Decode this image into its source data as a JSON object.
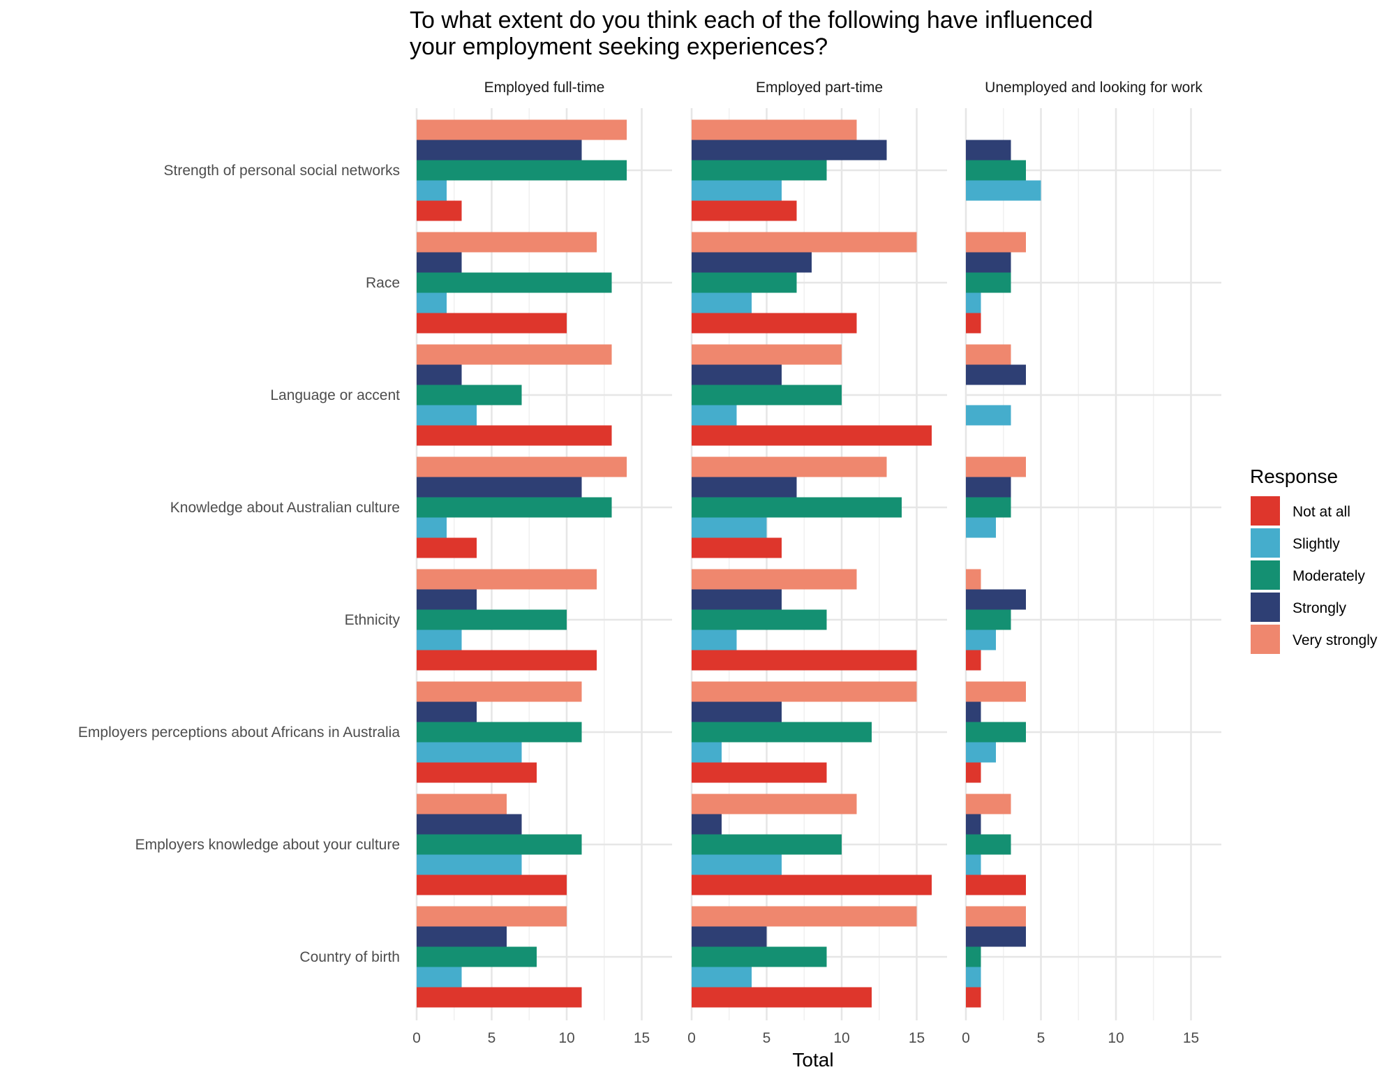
{
  "chart_data": {
    "type": "bar",
    "orientation": "horizontal",
    "title_lines": [
      "To what extent do you think each of the following have influenced",
      "your employment seeking experiences?"
    ],
    "xlabel": "Total",
    "ylabel": "",
    "xlim": [
      0,
      17
    ],
    "x_ticks": [
      0,
      5,
      10,
      15
    ],
    "grid": true,
    "legend": {
      "title": "Response",
      "position": "right",
      "entries": [
        "Not at all",
        "Slightly",
        "Moderately",
        "Strongly",
        "Very strongly"
      ]
    },
    "colors": {
      "Not at all": "#DE362C",
      "Slightly": "#45ADCC",
      "Moderately": "#149072",
      "Strongly": "#2E3F74",
      "Very strongly": "#EF876E"
    },
    "categories": [
      "Strength of personal social networks",
      "Race",
      "Language or accent",
      "Knowledge about Australian culture",
      "Ethnicity",
      "Employers perceptions about Africans in Australia",
      "Employers knowledge about your culture",
      "Country of birth"
    ],
    "facets": [
      {
        "name": "Employed full-time",
        "series": [
          {
            "name": "Not at all",
            "values": [
              3,
              10,
              13,
              4,
              12,
              8,
              10,
              11
            ]
          },
          {
            "name": "Slightly",
            "values": [
              2,
              2,
              4,
              2,
              3,
              7,
              7,
              3
            ]
          },
          {
            "name": "Moderately",
            "values": [
              14,
              13,
              7,
              13,
              10,
              11,
              11,
              8
            ]
          },
          {
            "name": "Strongly",
            "values": [
              11,
              3,
              3,
              11,
              4,
              4,
              7,
              6
            ]
          },
          {
            "name": "Very strongly",
            "values": [
              14,
              12,
              13,
              14,
              12,
              11,
              6,
              10
            ]
          }
        ]
      },
      {
        "name": "Employed part-time",
        "series": [
          {
            "name": "Not at all",
            "values": [
              7,
              11,
              16,
              6,
              15,
              9,
              16,
              12
            ]
          },
          {
            "name": "Slightly",
            "values": [
              6,
              4,
              3,
              5,
              3,
              2,
              6,
              4
            ]
          },
          {
            "name": "Moderately",
            "values": [
              9,
              7,
              10,
              14,
              9,
              12,
              10,
              9
            ]
          },
          {
            "name": "Strongly",
            "values": [
              13,
              8,
              6,
              7,
              6,
              6,
              2,
              5
            ]
          },
          {
            "name": "Very strongly",
            "values": [
              11,
              15,
              10,
              13,
              11,
              15,
              11,
              15
            ]
          }
        ]
      },
      {
        "name": "Unemployed and looking for work",
        "series": [
          {
            "name": "Not at all",
            "values": [
              null,
              1,
              null,
              null,
              1,
              1,
              4,
              1
            ]
          },
          {
            "name": "Slightly",
            "values": [
              5,
              1,
              3,
              2,
              2,
              2,
              1,
              1
            ]
          },
          {
            "name": "Moderately",
            "values": [
              4,
              3,
              null,
              3,
              3,
              4,
              3,
              1
            ]
          },
          {
            "name": "Strongly",
            "values": [
              3,
              3,
              4,
              3,
              4,
              1,
              1,
              4
            ]
          },
          {
            "name": "Very strongly",
            "values": [
              null,
              4,
              3,
              4,
              1,
              4,
              3,
              4
            ]
          }
        ]
      }
    ]
  }
}
